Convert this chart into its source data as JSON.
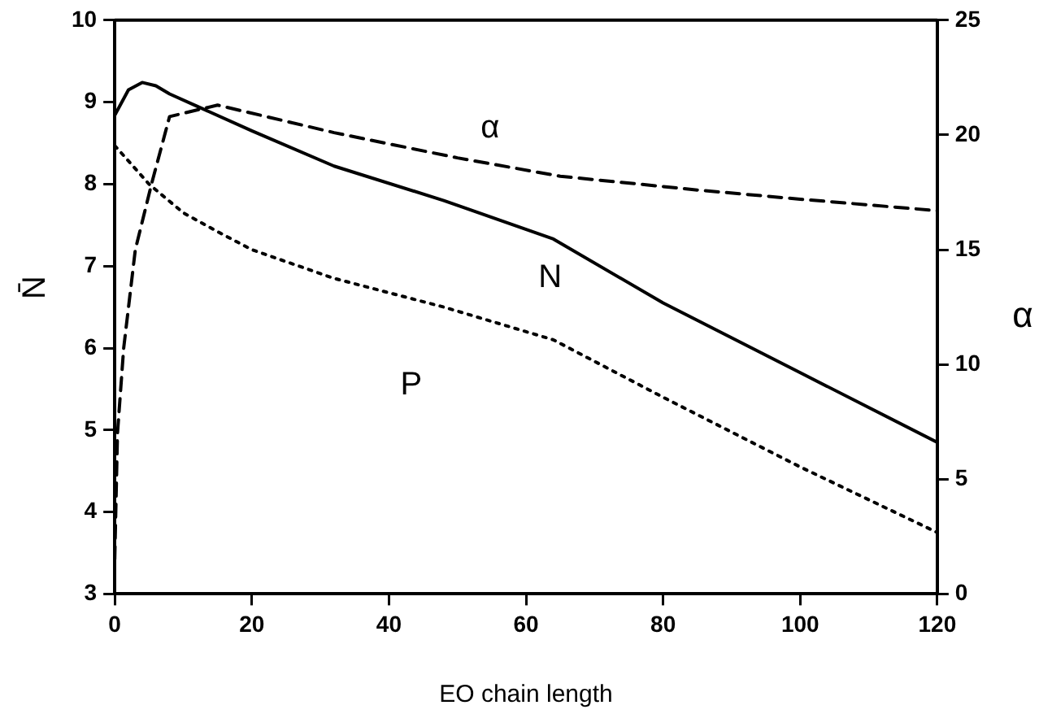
{
  "chart_data": {
    "type": "line",
    "xlabel": "EO chain length",
    "ylabel": "N̄",
    "y2label": "α",
    "xlim": [
      0,
      120
    ],
    "xticks": [
      0,
      20,
      40,
      60,
      80,
      100,
      120
    ],
    "ylim": [
      3,
      10
    ],
    "yticks": [
      3,
      4,
      5,
      6,
      7,
      8,
      9,
      10
    ],
    "y2lim": [
      0,
      25
    ],
    "y2ticks": [
      0,
      5,
      10,
      15,
      20,
      25
    ],
    "grid": false,
    "legend": false,
    "marker": "none",
    "series": [
      {
        "name": "N",
        "color": "#000000",
        "line_style": "solid",
        "x": [
          0,
          2,
          4,
          6,
          8,
          12,
          20,
          32,
          48,
          64,
          80,
          100,
          120
        ],
        "values": [
          8.84,
          9.15,
          9.24,
          9.2,
          9.1,
          8.95,
          8.65,
          8.22,
          7.8,
          7.33,
          6.55,
          5.7,
          4.85
        ]
      },
      {
        "name": "P",
        "color": "#000000",
        "line_style": "dotted",
        "x": [
          0,
          5,
          10,
          15,
          20,
          32,
          48,
          64,
          80,
          100,
          120
        ],
        "values": [
          8.47,
          8.0,
          7.65,
          7.42,
          7.2,
          6.85,
          6.5,
          6.1,
          5.4,
          4.55,
          3.75
        ]
      },
      {
        "name": "α",
        "color": "#000000",
        "line_style": "dashed",
        "axis": "y2",
        "x": [
          0,
          0.4,
          1.3,
          3,
          5.4,
          8,
          15,
          32,
          50,
          65,
          85,
          100,
          120
        ],
        "values": [
          1.5,
          7,
          10.7,
          15,
          17.9,
          20.8,
          21.3,
          20.1,
          19,
          18.2,
          17.6,
          17.2,
          16.7
        ]
      }
    ]
  }
}
